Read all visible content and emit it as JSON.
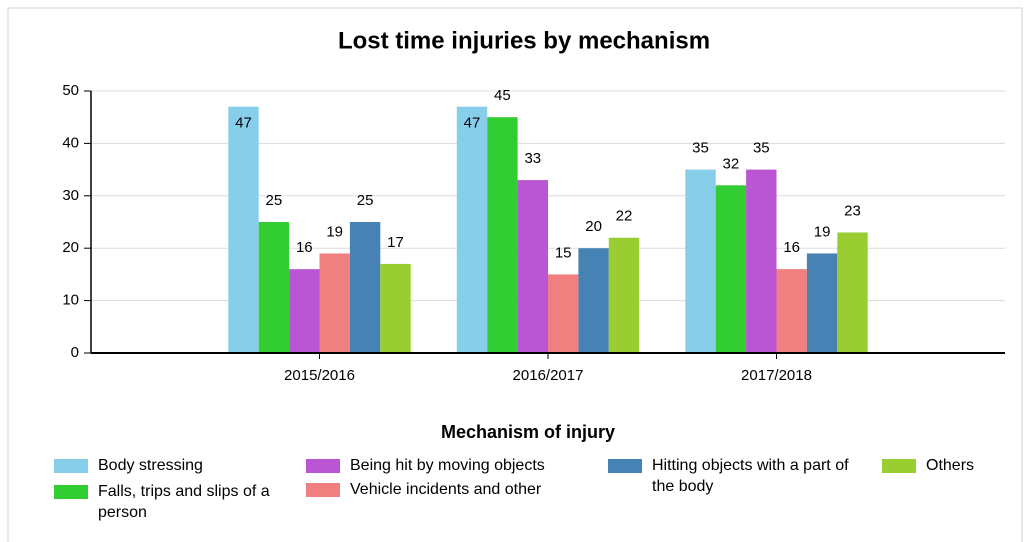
{
  "chart_data": {
    "type": "bar",
    "title": "Lost time injuries by mechanism",
    "x_label": "Mechanism of injury",
    "categories": [
      "2015/2016",
      "2016/2017",
      "2017/2018"
    ],
    "series": [
      {
        "name": "Body stressing",
        "color": "#87ceeb",
        "values": [
          47,
          47,
          35
        ]
      },
      {
        "name": "Falls, trips and slips of a person",
        "color": "#32cd32",
        "values": [
          25,
          45,
          32
        ]
      },
      {
        "name": "Being hit by moving objects",
        "color": "#ba55d3",
        "values": [
          16,
          33,
          35
        ]
      },
      {
        "name": "Vehicle incidents and other",
        "color": "#f08080",
        "values": [
          19,
          15,
          16
        ]
      },
      {
        "name": "Hitting objects with a part of the body",
        "color": "#4682b4",
        "values": [
          25,
          20,
          19
        ]
      },
      {
        "name": "Others",
        "color": "#9acd32",
        "values": [
          17,
          22,
          23
        ]
      }
    ],
    "ylim": [
      0,
      50
    ],
    "yticks": [
      0,
      10,
      20,
      30,
      40,
      50
    ],
    "grid": true
  }
}
